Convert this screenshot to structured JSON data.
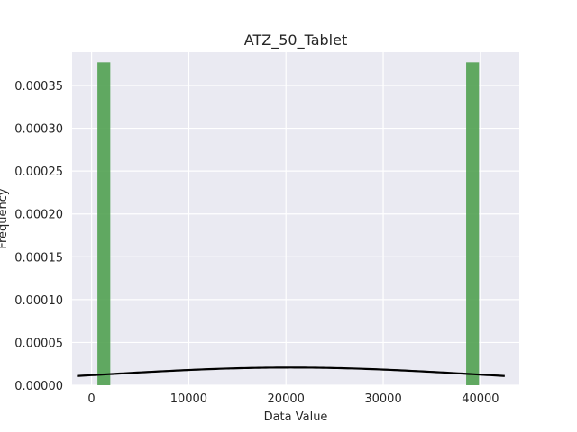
{
  "chart_data": {
    "type": "bar",
    "title": "ATZ_50_Tablet",
    "xlabel": "Data Value",
    "ylabel": "Frequency",
    "xlim": [
      -2000,
      44000
    ],
    "ylim": [
      0,
      0.0003889
    ],
    "xticks": [
      0,
      10000,
      20000,
      30000,
      40000
    ],
    "xtick_labels": [
      "0",
      "10000",
      "20000",
      "30000",
      "40000"
    ],
    "yticks": [
      0,
      5e-05,
      0.0001,
      0.00015,
      0.0002,
      0.00025,
      0.0003,
      0.00035
    ],
    "ytick_labels": [
      "0.00000",
      "0.00005",
      "0.00010",
      "0.00015",
      "0.00020",
      "0.00025",
      "0.00030",
      "0.00035"
    ],
    "grid": true,
    "histogram": {
      "color": "#4c9e4c",
      "bins": [
        {
          "x0": 607,
          "x1": 1927,
          "value": 0.000377
        },
        {
          "x0": 38533,
          "x1": 39853,
          "value": 0.000377
        }
      ]
    },
    "curve": {
      "type": "normal-pdf",
      "color": "#000000",
      "mean": 20500,
      "std": 19300,
      "x_start": -1500,
      "x_end": 42500
    }
  }
}
